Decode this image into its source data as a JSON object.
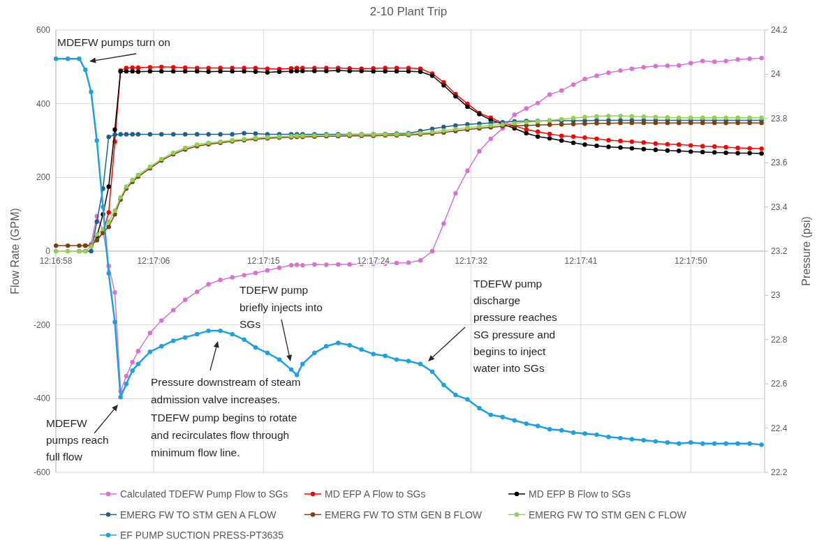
{
  "chart_data": {
    "type": "line",
    "title": "2-10 Plant Trip",
    "ylabel": "Flow Rate (GPM)",
    "y2label": "Pressure (psi)",
    "x": [
      12.28278,
      12.28305,
      12.28331,
      12.28345,
      12.28358,
      12.28371,
      12.28385,
      12.28398,
      12.28412,
      12.28425,
      12.28438,
      12.28452,
      12.28465,
      12.28492,
      12.28518,
      12.28545,
      12.28572,
      12.28599,
      12.28625,
      12.28652,
      12.28679,
      12.28706,
      12.28732,
      12.28759,
      12.28786,
      12.28813,
      12.28826,
      12.28839,
      12.28866,
      12.28893,
      12.2892,
      12.28946,
      12.28973,
      12.29,
      12.29027,
      12.29053,
      12.2908,
      12.29107,
      12.29134,
      12.2916,
      12.29187,
      12.29214,
      12.29241,
      12.29267,
      12.29294,
      12.29321,
      12.29348,
      12.29374,
      12.29401,
      12.29428,
      12.29455,
      12.29481,
      12.29508,
      12.29535,
      12.29562,
      12.29588,
      12.29615,
      12.29642,
      12.29669,
      12.29695,
      12.29722,
      12.29749,
      12.29776,
      12.29802,
      12.29829,
      12.29856,
      12.29883
    ],
    "xlim": [
      12.282778,
      12.2989
    ],
    "xticks": [
      {
        "value": 12.282778,
        "label": "12:16:58"
      },
      {
        "value": 12.285,
        "label": "12:17:06"
      },
      {
        "value": 12.2875,
        "label": "12:17:15"
      },
      {
        "value": 12.29,
        "label": "12:17:24"
      },
      {
        "value": 12.292222,
        "label": "12:17:32"
      },
      {
        "value": 12.294722,
        "label": "12:17:41"
      },
      {
        "value": 12.297222,
        "label": "12:17:50"
      }
    ],
    "ylim": [
      -600,
      600
    ],
    "yticks": [
      -600,
      -400,
      -200,
      0,
      200,
      400,
      600
    ],
    "y2lim": [
      22.2,
      24.2
    ],
    "y2ticks": [
      22.2,
      22.4,
      22.6,
      22.8,
      23,
      23.2,
      23.4,
      23.6,
      23.8,
      24,
      24.2
    ],
    "grid": true,
    "legend": "bottom",
    "marker": "circle",
    "series": [
      {
        "name": "Calculated TDEFW Pump Flow to SGs",
        "color": "#da70d6",
        "values": [
          null,
          null,
          null,
          null,
          20,
          95,
          55,
          -40,
          -112,
          -380,
          -339,
          -301,
          -271,
          -222,
          -188,
          -160,
          -132,
          -110,
          -90,
          -78,
          -71,
          -65,
          -59,
          -52,
          -45,
          -38,
          -37,
          -38,
          -36,
          -37,
          -36,
          -36,
          -35,
          -34,
          -34,
          -32,
          -31,
          -25,
          0,
          75,
          157,
          218,
          271,
          305,
          333,
          370,
          387,
          402,
          425,
          436,
          452,
          467,
          476,
          484,
          490,
          495,
          499,
          502,
          503,
          504,
          510,
          516,
          514,
          516,
          520,
          522,
          524
        ]
      },
      {
        "name": "MD EFP A Flow to SGs",
        "color": "#ff0000",
        "values": [
          null,
          null,
          null,
          null,
          null,
          30,
          50,
          105,
          297,
          490,
          497,
          498,
          498,
          499,
          500,
          499,
          498,
          497,
          497,
          497,
          497,
          497,
          497,
          495,
          494,
          496,
          497,
          497,
          497,
          497,
          497,
          496,
          495,
          496,
          497,
          497,
          497,
          495,
          482,
          458,
          426,
          400,
          375,
          362,
          348,
          340,
          330,
          324,
          318,
          313,
          311,
          308,
          305,
          301,
          299,
          297,
          295,
          292,
          290,
          289,
          287,
          285,
          284,
          282,
          280,
          279,
          278
        ]
      },
      {
        "name": "MD EFP B Flow to SGs",
        "color": "#000000",
        "values": [
          null,
          null,
          null,
          15,
          15,
          40,
          100,
          175,
          330,
          488,
          488,
          488,
          487,
          488,
          488,
          488,
          488,
          488,
          487,
          488,
          488,
          488,
          487,
          485,
          487,
          488,
          489,
          489,
          489,
          489,
          490,
          489,
          489,
          488,
          488,
          488,
          488,
          487,
          476,
          450,
          420,
          392,
          372,
          356,
          345,
          333,
          320,
          311,
          306,
          300,
          294,
          289,
          286,
          283,
          281,
          279,
          277,
          275,
          273,
          272,
          270,
          269,
          268,
          267,
          266,
          266,
          265
        ]
      },
      {
        "name": "EMERG FW TO STM GEN A FLOW",
        "color": "#1f5f8b",
        "values": [
          null,
          null,
          0,
          0,
          0,
          80,
          170,
          310,
          316,
          317,
          317,
          317,
          317,
          317,
          317,
          317,
          317,
          317,
          317,
          317,
          317,
          320,
          319,
          317,
          317,
          317,
          317,
          317,
          317,
          317,
          317,
          317,
          317,
          317,
          318,
          319,
          320,
          326,
          332,
          337,
          341,
          344,
          346,
          348,
          350,
          352,
          353,
          353,
          354,
          354,
          354,
          354,
          355,
          355,
          355,
          355,
          355,
          355,
          355,
          355,
          355,
          355,
          355,
          355,
          355,
          355,
          355
        ]
      },
      {
        "name": "EMERG FW TO STM GEN B FLOW",
        "color": "#843c0c",
        "values": [
          15,
          15,
          15,
          15,
          15,
          30,
          50,
          66,
          100,
          140,
          170,
          188,
          202,
          225,
          246,
          263,
          276,
          285,
          290,
          294,
          298,
          301,
          304,
          306,
          308,
          309,
          310,
          310,
          311,
          312,
          312,
          313,
          313,
          313,
          314,
          314,
          315,
          317,
          319,
          322,
          326,
          330,
          333,
          336,
          339,
          340,
          341,
          342,
          343,
          344,
          345,
          346,
          347,
          347,
          348,
          348,
          348,
          348,
          348,
          348,
          348,
          348,
          348,
          348,
          348,
          348,
          348
        ]
      },
      {
        "name": "EMERG FW TO STM GEN C FLOW",
        "color": "#92d050",
        "values": [
          0,
          0,
          0,
          0,
          13,
          45,
          60,
          80,
          110,
          146,
          175,
          193,
          207,
          229,
          250,
          267,
          280,
          289,
          294,
          297,
          301,
          304,
          307,
          309,
          311,
          312,
          313,
          313,
          314,
          315,
          315,
          316,
          316,
          316,
          317,
          317,
          318,
          320,
          323,
          327,
          331,
          335,
          338,
          341,
          344,
          347,
          350,
          352,
          355,
          358,
          361,
          364,
          366,
          367,
          367,
          366,
          365,
          364,
          363,
          362,
          362,
          362,
          362,
          362,
          362,
          362,
          362
        ]
      },
      {
        "name": "EF PUMP SUCTION PRESS-PT3635",
        "color": "#1ba1e2",
        "axis": "y2",
        "values": [
          24.07,
          24.07,
          24.07,
          24.02,
          23.92,
          23.7,
          23.4,
          23.1,
          22.88,
          22.54,
          22.6,
          22.66,
          22.69,
          22.745,
          22.77,
          22.795,
          22.81,
          22.825,
          22.84,
          22.84,
          22.825,
          22.8,
          22.765,
          22.74,
          22.71,
          22.665,
          22.64,
          22.69,
          22.74,
          22.77,
          22.785,
          22.775,
          22.755,
          22.735,
          22.727,
          22.71,
          22.703,
          22.69,
          22.655,
          22.595,
          22.55,
          22.53,
          22.49,
          22.46,
          22.45,
          22.435,
          22.42,
          22.41,
          22.395,
          22.39,
          22.38,
          22.375,
          22.37,
          22.36,
          22.355,
          22.35,
          22.345,
          22.34,
          22.335,
          22.33,
          22.335,
          22.33,
          22.33,
          22.33,
          22.33,
          22.33,
          22.325
        ]
      }
    ],
    "annotations": [
      "MDEFW pumps turn on",
      "MDEFW\npumps reach\nfull flow",
      "Pressure downstream of steam\nadmission valve increases.\nTDEFW pump begins to rotate\nand recirculates flow through\nminimum flow line.",
      "TDEFW pump\nbriefly injects into\nSGs",
      "TDEFW pump\ndischarge\npressure reaches\nSG pressure and\nbegins to inject\nwater into SGs"
    ]
  }
}
